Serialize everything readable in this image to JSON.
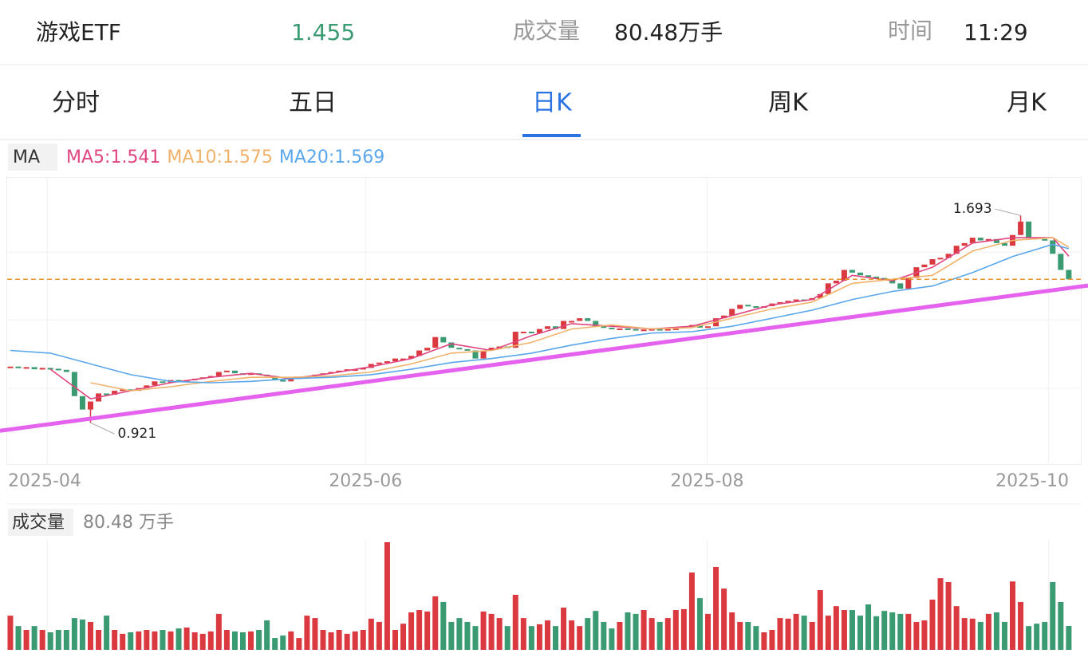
{
  "header": {
    "name": "游戏ETF",
    "price": "1.455",
    "volume_label": "成交量",
    "volume": "80.48万手",
    "time_label": "时间",
    "time": "11:29"
  },
  "tabs": [
    "分时",
    "五日",
    "日K",
    "周K",
    "月K"
  ],
  "active_tab": 2,
  "chart_data": [
    {
      "type": "candlestick",
      "legend_title": "MA",
      "closes": [
        1.13,
        1.125,
        1.128,
        1.12,
        1.125,
        1.122,
        1.118,
        1.11,
        1.02,
        0.97,
        1.0,
        1.03,
        1.025,
        1.04,
        1.045,
        1.04,
        1.05,
        1.06,
        1.075,
        1.07,
        1.08,
        1.075,
        1.08,
        1.085,
        1.09,
        1.095,
        1.11,
        1.115,
        1.105,
        1.1,
        1.105,
        1.1,
        1.095,
        1.08,
        1.075,
        1.085,
        1.09,
        1.095,
        1.1,
        1.105,
        1.11,
        1.115,
        1.12,
        1.12,
        1.125,
        1.14,
        1.145,
        1.15,
        1.16,
        1.16,
        1.17,
        1.19,
        1.2,
        1.24,
        1.22,
        1.2,
        1.195,
        1.19,
        1.16,
        1.19,
        1.2,
        1.205,
        1.2,
        1.26,
        1.26,
        1.255,
        1.27,
        1.28,
        1.27,
        1.3,
        1.3,
        1.31,
        1.3,
        1.28,
        1.275,
        1.27,
        1.272,
        1.27,
        1.265,
        1.268,
        1.27,
        1.265,
        1.27,
        1.272,
        1.28,
        1.285,
        1.275,
        1.28,
        1.31,
        1.32,
        1.345,
        1.36,
        1.355,
        1.35,
        1.355,
        1.365,
        1.37,
        1.375,
        1.38,
        1.378,
        1.385,
        1.4,
        1.44,
        1.45,
        1.49,
        1.48,
        1.47,
        1.465,
        1.46,
        1.45,
        1.44,
        1.42,
        1.46,
        1.5,
        1.51,
        1.53,
        1.535,
        1.55,
        1.58,
        1.59,
        1.61,
        1.6,
        1.605,
        1.59,
        1.58,
        1.62,
        1.67,
        1.61,
        1.605,
        1.6,
        1.55,
        1.49,
        1.455
      ],
      "up_color": "#d9393f",
      "down_color": "#3a9a72",
      "ref_color": "#e8952e",
      "xlim": [
        -1.29,
        134.4
      ],
      "ylim": [
        0.767,
        1.836
      ],
      "ygrid": [
        1.049,
        1.304,
        1.556
      ],
      "xticks": [
        {
          "value": 4.6,
          "label": "2025-04"
        },
        {
          "value": 44.3,
          "label": "2025-06"
        },
        {
          "value": 86.9,
          "label": "2025-08"
        },
        {
          "value": 129.5,
          "label": "2025-10"
        }
      ],
      "annotations": [
        {
          "index": 126,
          "value": 1.693
        },
        {
          "index": 10,
          "value": 0.921
        }
      ],
      "trendline": {
        "x": [
          -1.29,
          134.4
        ],
        "values": [
          0.891,
          1.432
        ],
        "color": "#e462ee"
      },
      "series": [
        {
          "name": "MA5:1.541",
          "color": "#e0457f",
          "x": [
            5,
            10,
            15,
            20,
            25,
            30,
            35,
            40,
            45,
            50,
            55,
            60,
            65,
            70,
            75,
            80,
            85,
            90,
            95,
            100,
            105,
            110,
            115,
            120,
            125,
            130,
            132
          ],
          "values": [
            1.12,
            1.01,
            1.04,
            1.07,
            1.09,
            1.105,
            1.085,
            1.105,
            1.13,
            1.16,
            1.215,
            1.19,
            1.245,
            1.29,
            1.28,
            1.27,
            1.28,
            1.32,
            1.36,
            1.38,
            1.47,
            1.45,
            1.5,
            1.59,
            1.61,
            1.61,
            1.541
          ]
        },
        {
          "name": "MA10:1.575",
          "color": "#f0b26a",
          "x": [
            10,
            15,
            20,
            25,
            30,
            35,
            40,
            45,
            50,
            55,
            60,
            65,
            70,
            75,
            80,
            85,
            90,
            95,
            100,
            105,
            110,
            115,
            120,
            125,
            130,
            132
          ],
          "values": [
            1.07,
            1.04,
            1.055,
            1.075,
            1.09,
            1.09,
            1.095,
            1.11,
            1.14,
            1.18,
            1.19,
            1.22,
            1.27,
            1.285,
            1.27,
            1.275,
            1.31,
            1.345,
            1.37,
            1.44,
            1.455,
            1.47,
            1.56,
            1.6,
            1.61,
            1.575
          ]
        },
        {
          "name": "MA20:1.569",
          "color": "#5aa6ea",
          "x": [
            0,
            5,
            10,
            15,
            20,
            25,
            30,
            35,
            40,
            45,
            50,
            55,
            60,
            65,
            70,
            75,
            80,
            85,
            90,
            95,
            100,
            105,
            110,
            115,
            120,
            125,
            130,
            132
          ],
          "values": [
            1.19,
            1.18,
            1.14,
            1.1,
            1.075,
            1.07,
            1.075,
            1.085,
            1.09,
            1.1,
            1.12,
            1.145,
            1.16,
            1.18,
            1.21,
            1.235,
            1.255,
            1.26,
            1.28,
            1.31,
            1.34,
            1.38,
            1.41,
            1.43,
            1.48,
            1.54,
            1.585,
            1.569
          ]
        }
      ]
    },
    {
      "type": "bar",
      "title": "成交量",
      "subtitle": "80.48 万手",
      "ylim": [
        0,
        370
      ],
      "values": [
        115,
        80,
        67,
        80,
        67,
        59,
        67,
        67,
        107,
        102,
        94,
        67,
        115,
        67,
        54,
        59,
        62,
        67,
        62,
        67,
        62,
        72,
        75,
        59,
        54,
        62,
        121,
        67,
        62,
        59,
        62,
        67,
        99,
        40,
        48,
        62,
        40,
        115,
        107,
        67,
        59,
        67,
        54,
        62,
        67,
        105,
        94,
        362,
        67,
        88,
        126,
        134,
        129,
        180,
        161,
        94,
        107,
        94,
        80,
        129,
        121,
        107,
        80,
        185,
        107,
        80,
        86,
        99,
        80,
        142,
        99,
        80,
        107,
        131,
        94,
        72,
        94,
        126,
        121,
        134,
        107,
        94,
        107,
        134,
        137,
        260,
        174,
        121,
        279,
        206,
        126,
        94,
        94,
        80,
        59,
        67,
        107,
        105,
        121,
        115,
        94,
        201,
        115,
        147,
        134,
        134,
        115,
        153,
        113,
        131,
        126,
        121,
        121,
        94,
        99,
        169,
        241,
        228,
        147,
        107,
        105,
        94,
        121,
        126,
        94,
        230,
        161,
        80,
        88,
        94,
        228,
        161,
        80.48
      ]
    }
  ]
}
